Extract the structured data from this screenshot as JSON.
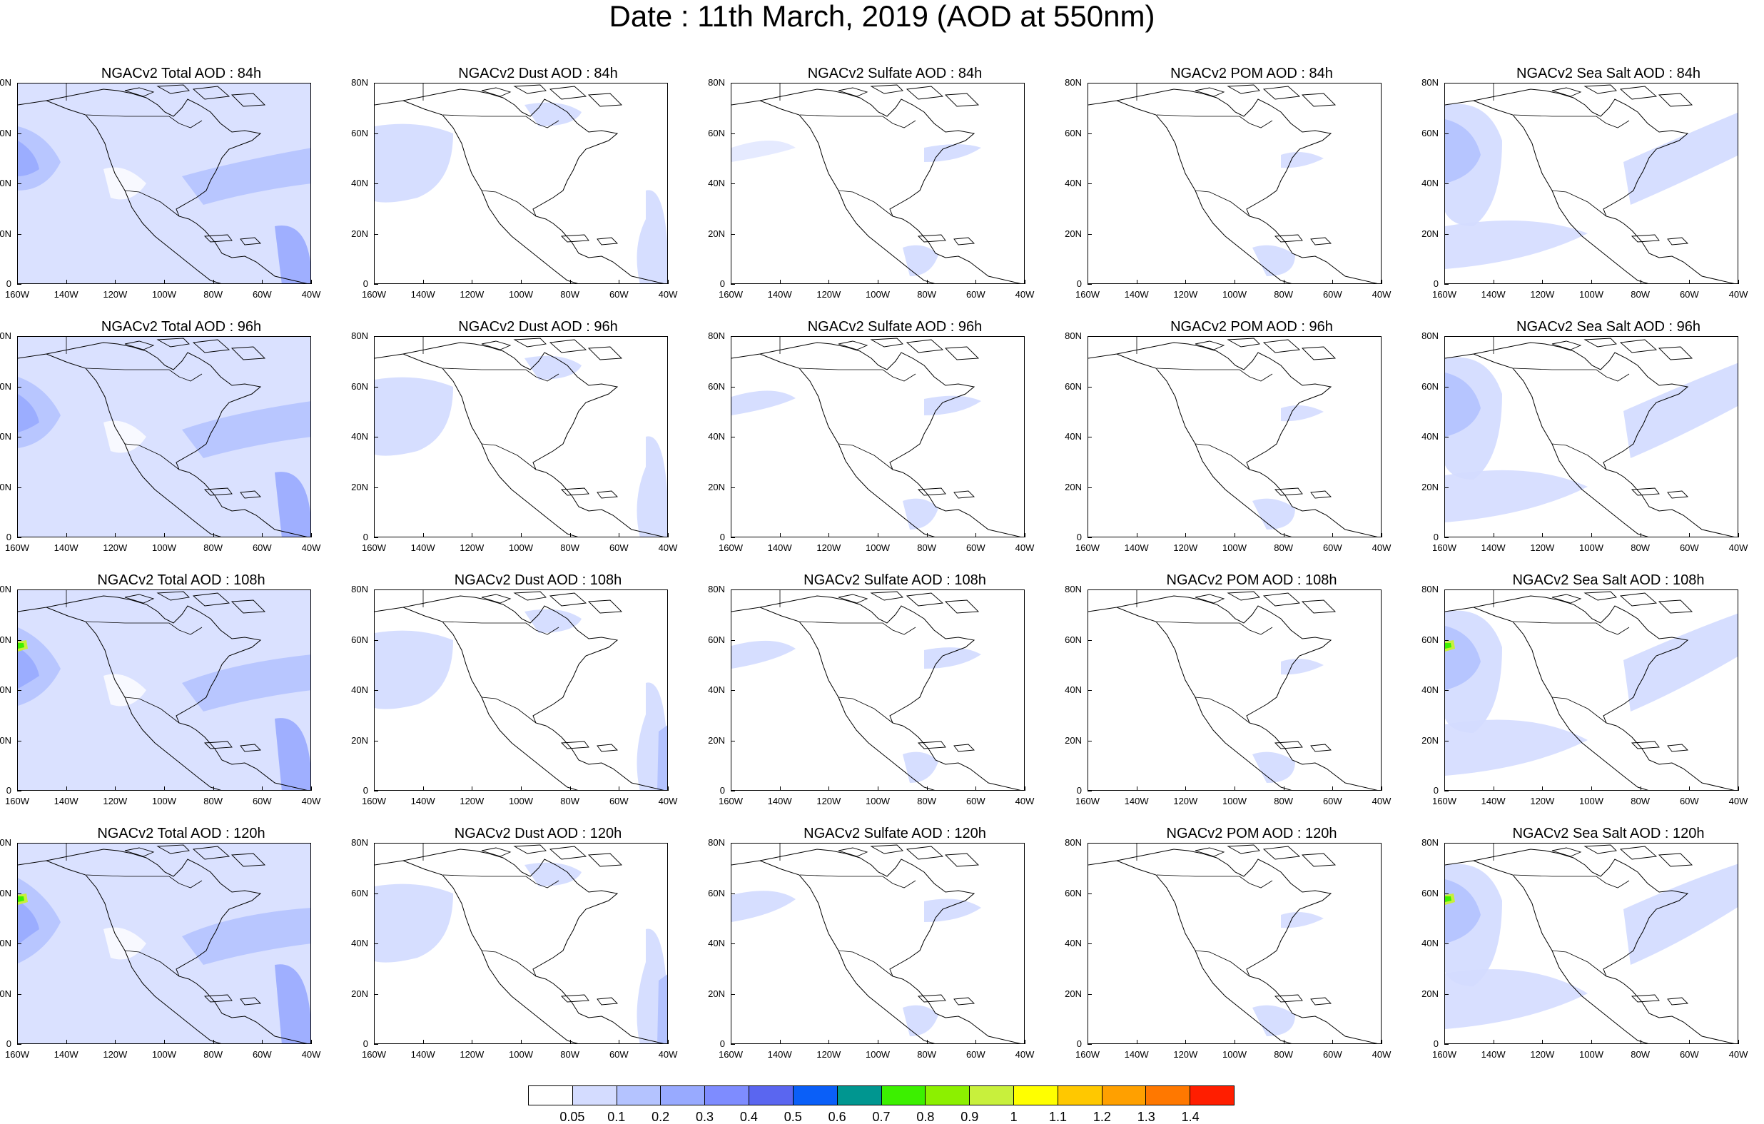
{
  "title": "Date : 11th March, 2019 (AOD at 550nm)",
  "lat_labels": [
    "80N",
    "60N",
    "40N",
    "20N",
    "0"
  ],
  "lon_labels": [
    "160W",
    "140W",
    "120W",
    "100W",
    "80W",
    "60W",
    "40W"
  ],
  "panels": [
    [
      "NGACv2 Total AOD : 84h",
      "NGACv2 Dust AOD : 84h",
      "NGACv2 Sulfate AOD : 84h",
      "NGACv2 POM AOD : 84h",
      "NGACv2 Sea Salt AOD : 84h"
    ],
    [
      "NGACv2 Total AOD : 96h",
      "NGACv2 Dust AOD : 96h",
      "NGACv2 Sulfate AOD : 96h",
      "NGACv2 POM AOD : 96h",
      "NGACv2 Sea Salt AOD : 96h"
    ],
    [
      "NGACv2 Total AOD : 108h",
      "NGACv2 Dust AOD : 108h",
      "NGACv2 Sulfate AOD : 108h",
      "NGACv2 POM AOD : 108h",
      "NGACv2 Sea Salt AOD : 108h"
    ],
    [
      "NGACv2 Total AOD : 120h",
      "NGACv2 Dust AOD : 120h",
      "NGACv2 Sulfate AOD : 120h",
      "NGACv2 POM AOD : 120h",
      "NGACv2 Sea Salt  AOD : 120h"
    ]
  ],
  "colorbar": {
    "labels": [
      "0.05",
      "0.1",
      "0.2",
      "0.3",
      "0.4",
      "0.5",
      "0.6",
      "0.7",
      "0.8",
      "0.9",
      "1",
      "1.1",
      "1.2",
      "1.3",
      "1.4"
    ],
    "colors": [
      "#ffffff",
      "#d4dcff",
      "#b4c3ff",
      "#98aaff",
      "#7e8cff",
      "#5a66f0",
      "#0a5ff8",
      "#009690",
      "#3cf000",
      "#8cf000",
      "#c8f03c",
      "#ffff00",
      "#ffc800",
      "#ffa000",
      "#ff7800",
      "#ff1e00"
    ]
  },
  "field_colors": {
    "light": "#d4dcff",
    "mid": "#b4c3ff",
    "dark": "#98aaff",
    "deep": "#7e8cff",
    "hot": "#3cf000",
    "hot2": "#c8f03c"
  }
}
